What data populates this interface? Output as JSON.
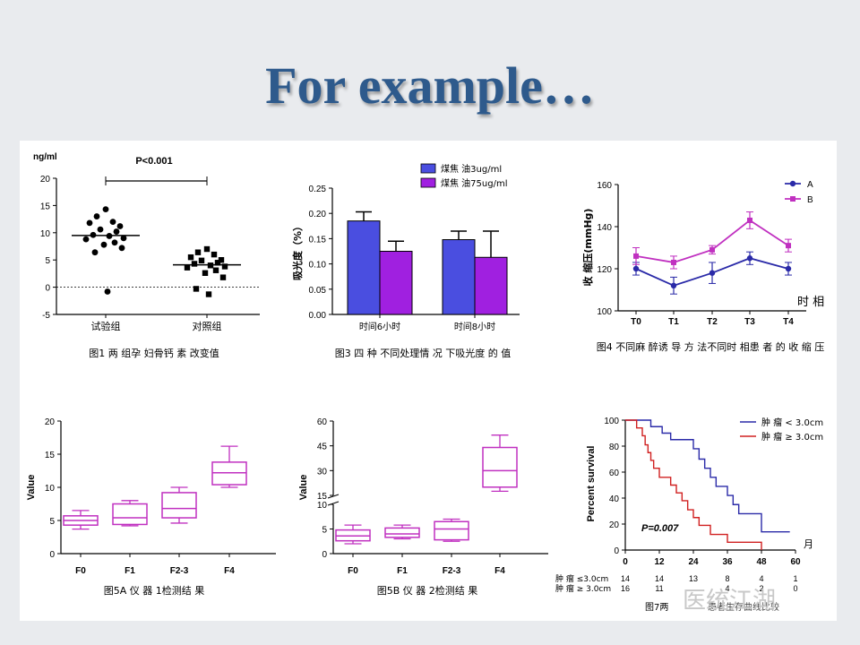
{
  "slide": {
    "title": "For example…",
    "watermark": "医统江湖"
  },
  "chart_data": [
    {
      "id": "fig1",
      "type": "scatter",
      "ylabel": "ng/ml",
      "ylim": [
        -5,
        20
      ],
      "yticks": [
        -5,
        0,
        5,
        10,
        15,
        20
      ],
      "categories": [
        "试验组",
        "对照组"
      ],
      "annotation": "P<0.001",
      "caption": "图1 两 组孕 妇骨钙 素 改变值",
      "series": [
        {
          "marker": "circle",
          "mean": 9.5,
          "values": [
            14.3,
            13.0,
            12.0,
            11.8,
            11.2,
            10.6,
            10.2,
            9.6,
            9.4,
            9.0,
            8.8,
            8.2,
            7.8,
            7.2,
            6.4,
            -0.8
          ]
        },
        {
          "marker": "square",
          "mean": 4.1,
          "values": [
            7.0,
            6.4,
            6.0,
            5.5,
            5.0,
            4.9,
            4.5,
            4.3,
            4.0,
            3.8,
            3.6,
            3.1,
            2.6,
            1.8,
            -0.3,
            -1.3
          ]
        }
      ]
    },
    {
      "id": "fig3",
      "type": "bar",
      "ylabel": "吸光度（%）",
      "ylim": [
        0,
        0.25
      ],
      "yticks": [
        0.0,
        0.05,
        0.1,
        0.15,
        0.2,
        0.25
      ],
      "categories": [
        "时间6小时",
        "时间8小时"
      ],
      "caption": "图3 四 种 不同处理情 况 下吸光度 的 值",
      "series": [
        {
          "name": "煤焦 油3ug/ml",
          "color": "#4a4ee0",
          "values": [
            0.185,
            0.148
          ],
          "errors": [
            0.018,
            0.017
          ]
        },
        {
          "name": "煤焦 油75ug/ml",
          "color": "#a020e0",
          "values": [
            0.125,
            0.113
          ],
          "errors": [
            0.02,
            0.052
          ]
        }
      ]
    },
    {
      "id": "fig4",
      "type": "line",
      "ylabel": "收 缩压(mmHg)",
      "xlabel": "时 相",
      "ylim": [
        100,
        160
      ],
      "yticks": [
        100,
        120,
        140,
        160
      ],
      "categories": [
        "T0",
        "T1",
        "T2",
        "T3",
        "T4"
      ],
      "caption": "图4 不同麻 醉诱 导 方 法不同时 相患 者 的 收 缩 压",
      "series": [
        {
          "name": "A",
          "color": "#2a2aa8",
          "marker": "circle",
          "values": [
            120,
            112,
            118,
            125,
            120
          ],
          "errors": [
            3,
            4,
            5,
            3,
            3
          ]
        },
        {
          "name": "B",
          "color": "#c030c0",
          "marker": "square",
          "values": [
            126,
            123,
            129,
            143,
            131
          ],
          "errors": [
            4,
            3,
            2,
            4,
            3
          ]
        }
      ]
    },
    {
      "id": "fig5a",
      "type": "box",
      "ylabel": "Value",
      "ylim": [
        0,
        20
      ],
      "yticks": [
        0,
        5,
        10,
        15,
        20
      ],
      "categories": [
        "F0",
        "F1",
        "F2-3",
        "F4"
      ],
      "caption": "图5A 仪 器 1检测结 果",
      "color": "#c030c0",
      "boxes": [
        {
          "min": 3.7,
          "q1": 4.3,
          "median": 5.0,
          "q3": 5.7,
          "max": 6.5
        },
        {
          "min": 4.2,
          "q1": 4.4,
          "median": 5.4,
          "q3": 7.5,
          "max": 8.0
        },
        {
          "min": 4.6,
          "q1": 5.4,
          "median": 6.8,
          "q3": 9.2,
          "max": 10.0
        },
        {
          "min": 10.0,
          "q1": 10.4,
          "median": 12.2,
          "q3": 13.8,
          "max": 16.2
        }
      ]
    },
    {
      "id": "fig5b",
      "type": "box",
      "ylabel": "Value",
      "ylim": [
        0,
        60
      ],
      "ybreak": [
        10,
        15
      ],
      "yticks": [
        0,
        5,
        10,
        15,
        30,
        45,
        60
      ],
      "categories": [
        "F0",
        "F1",
        "F2-3",
        "F4"
      ],
      "caption": "图5B 仪 器 2检测结 果",
      "color": "#c030c0",
      "boxes": [
        {
          "min": 2.0,
          "q1": 2.6,
          "median": 3.6,
          "q3": 4.8,
          "max": 5.8
        },
        {
          "min": 3.0,
          "q1": 3.3,
          "median": 4.0,
          "q3": 5.2,
          "max": 5.8
        },
        {
          "min": 2.5,
          "q1": 2.8,
          "median": 5.0,
          "q3": 6.5,
          "max": 7.0
        },
        {
          "min": 17.5,
          "q1": 20.0,
          "median": 30.0,
          "q3": 44.0,
          "max": 51.5
        }
      ]
    },
    {
      "id": "fig7",
      "type": "line",
      "ylabel": "Percent survival",
      "xlabel": "月",
      "ylim": [
        0,
        100
      ],
      "yticks": [
        0,
        20,
        40,
        60,
        80,
        100
      ],
      "xlim": [
        0,
        60
      ],
      "xticks": [
        0,
        12,
        24,
        36,
        48,
        60
      ],
      "annotation": "P=0.007",
      "caption": "图7两",
      "caption_tail": "患者生存曲线比较",
      "series": [
        {
          "name": "肿 瘤 < 3.0cm",
          "color": "#2a2aa8",
          "steps": [
            [
              0,
              100
            ],
            [
              9,
              100
            ],
            [
              9,
              95
            ],
            [
              13,
              95
            ],
            [
              13,
              90
            ],
            [
              16,
              90
            ],
            [
              16,
              85
            ],
            [
              24,
              85
            ],
            [
              24,
              78
            ],
            [
              26,
              78
            ],
            [
              26,
              70
            ],
            [
              28,
              70
            ],
            [
              28,
              63
            ],
            [
              30,
              63
            ],
            [
              30,
              56
            ],
            [
              32,
              56
            ],
            [
              32,
              49
            ],
            [
              36,
              49
            ],
            [
              36,
              42
            ],
            [
              38,
              42
            ],
            [
              38,
              35
            ],
            [
              40,
              35
            ],
            [
              40,
              28
            ],
            [
              48,
              28
            ],
            [
              48,
              14
            ],
            [
              58,
              14
            ]
          ]
        },
        {
          "name": "肿 瘤 ≥ 3.0cm",
          "color": "#d02020",
          "steps": [
            [
              0,
              100
            ],
            [
              4,
              100
            ],
            [
              4,
              94
            ],
            [
              6,
              94
            ],
            [
              6,
              88
            ],
            [
              7,
              88
            ],
            [
              7,
              81
            ],
            [
              8,
              81
            ],
            [
              8,
              75
            ],
            [
              9,
              75
            ],
            [
              9,
              69
            ],
            [
              10,
              69
            ],
            [
              10,
              63
            ],
            [
              12,
              63
            ],
            [
              12,
              56
            ],
            [
              16,
              56
            ],
            [
              16,
              50
            ],
            [
              18,
              50
            ],
            [
              18,
              44
            ],
            [
              20,
              44
            ],
            [
              20,
              38
            ],
            [
              22,
              38
            ],
            [
              22,
              31
            ],
            [
              24,
              31
            ],
            [
              24,
              25
            ],
            [
              26,
              25
            ],
            [
              26,
              19
            ],
            [
              30,
              19
            ],
            [
              30,
              12
            ],
            [
              36,
              12
            ],
            [
              36,
              6
            ],
            [
              48,
              6
            ],
            [
              48,
              0
            ]
          ]
        }
      ],
      "risk_table": [
        {
          "label": "肿 瘤 ≤3.0cm",
          "values": [
            "14",
            "14",
            "13",
            "8",
            "4",
            "1"
          ]
        },
        {
          "label": "肿 瘤 ≥ 3.0cm",
          "values": [
            "16",
            "11",
            "",
            "4",
            "2",
            "0"
          ]
        }
      ]
    }
  ]
}
